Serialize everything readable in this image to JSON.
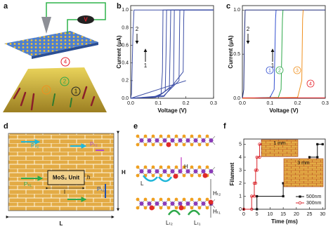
{
  "panel_labels": [
    "a",
    "b",
    "c",
    "d",
    "e",
    "f"
  ],
  "panel_a": {
    "markers": [
      "1",
      "2",
      "3",
      "4"
    ],
    "source": "V"
  },
  "panel_d": {
    "height": "H",
    "length": "L",
    "unit": "MoS₂ Unit",
    "unit_height": "h",
    "unit_length": "l",
    "paths": [
      "Pₛ₂",
      "Pₜ₂",
      "Pₛ₁",
      "Pₜ₁"
    ]
  },
  "panel_e": {
    "labels": [
      "H",
      "L",
      "Hₜ₂",
      "Hₜ₁",
      "Lₜ₂",
      "Lₜ₁"
    ]
  },
  "chart_data": [
    {
      "type": "line",
      "y_label": "Current (μA)",
      "x_label": "Voltage (V)",
      "xlim": [
        0,
        0.3
      ],
      "ylim": [
        0,
        1.05
      ],
      "xticks": [
        {
          "value": 0,
          "label": "0.0"
        },
        0.1,
        0.2,
        0.3
      ],
      "yticks": [
        {
          "value": 0,
          "label": "0.0"
        },
        0.2,
        0.4,
        0.6,
        0.8,
        {
          "value": 1,
          "label": "1.0"
        }
      ],
      "annotations": [
        "2",
        "1"
      ],
      "series": [
        {
          "color": "#3d4fa6",
          "x": [
            0,
            0.08,
            0.11,
            0.115,
            0.117,
            0.3
          ],
          "values": [
            0,
            0.01,
            0.05,
            0.3,
            1.0,
            1.0
          ]
        },
        {
          "color": "#3d4fa6",
          "x": [
            0,
            0.09,
            0.125,
            0.128,
            0.13,
            0.3
          ],
          "values": [
            0,
            0.01,
            0.08,
            0.5,
            1.0,
            1.0
          ]
        },
        {
          "color": "#3d4fa6",
          "x": [
            0,
            0.1,
            0.14,
            0.143,
            0.145,
            0.3
          ],
          "values": [
            0,
            0.02,
            0.12,
            0.6,
            1.0,
            1.0
          ]
        },
        {
          "color": "#3d4fa6",
          "x": [
            0,
            0.1,
            0.155,
            0.157,
            0.158,
            0.3
          ],
          "values": [
            0,
            0.02,
            0.15,
            0.7,
            1.0,
            1.0
          ]
        },
        {
          "color": "#3d4fa6",
          "x": [
            0,
            0.12,
            0.175,
            0.177,
            0.178,
            0.3
          ],
          "values": [
            0,
            0.03,
            0.2,
            0.8,
            1.0,
            1.0
          ]
        },
        {
          "color": "#3d4fa6",
          "x": [
            0,
            0.12,
            0.19,
            0.192,
            0.193,
            0.3
          ],
          "values": [
            0,
            0.02,
            0.3,
            0.9,
            1.0,
            1.0
          ]
        },
        {
          "color": "#3d4fa6",
          "x": [
            0,
            0.05,
            0.1,
            0.15,
            0.2
          ],
          "values": [
            0,
            0.05,
            0.1,
            0.15,
            0.2
          ]
        },
        {
          "color": "#3d4fa6",
          "x": [
            0.3,
            0.012,
            0.008,
            0.005,
            0.003,
            0
          ],
          "values": [
            1.0,
            1.0,
            0.7,
            0.3,
            0.05,
            0
          ]
        }
      ]
    },
    {
      "type": "line",
      "y_label": "Current (μA)",
      "x_label": "Voltage (V)",
      "xlim": [
        0,
        0.3
      ],
      "ylim": [
        0,
        1.05
      ],
      "xticks": [
        {
          "value": 0,
          "label": "0.0"
        },
        0.1,
        0.2,
        0.3
      ],
      "yticks": [
        {
          "value": 0,
          "label": "0.0"
        },
        0.5,
        {
          "value": 1,
          "label": "1.0"
        }
      ],
      "annotations": [
        "2",
        "1",
        "1",
        "2",
        "3",
        "4"
      ],
      "series": [
        {
          "color": "#1e2b78",
          "x": [
            0.3,
            0.01,
            0.007,
            0.005,
            0
          ],
          "values": [
            1.0,
            1.0,
            0.6,
            0.1,
            0
          ]
        },
        {
          "color": "#3350d0",
          "x": [
            0,
            0.1,
            0.115,
            0.12,
            0.122
          ],
          "values": [
            0,
            0.01,
            0.1,
            0.9,
            1.0
          ]
        },
        {
          "color": "#2ea84a",
          "x": [
            0,
            0.13,
            0.14,
            0.145,
            0.147
          ],
          "values": [
            0,
            0.01,
            0.1,
            0.9,
            1.0
          ]
        },
        {
          "color": "#f0901e",
          "x": [
            0,
            0.2,
            0.215,
            0.218,
            0.22
          ],
          "values": [
            0,
            0.01,
            0.2,
            0.9,
            1.0
          ]
        },
        {
          "color": "#e5202a",
          "x": [
            0,
            0.3
          ],
          "values": [
            0.005,
            0.005
          ]
        }
      ]
    },
    {
      "type": "line",
      "y_label": "Filament",
      "x_label": "Time (ms)",
      "xlim": [
        0,
        31
      ],
      "ylim": [
        0,
        5.4
      ],
      "xticks": [
        0,
        5,
        10,
        15,
        20,
        25,
        30
      ],
      "yticks": [
        0,
        1,
        2,
        3,
        4,
        5
      ],
      "legend": "lower right",
      "insets": [
        "1 mm",
        "3 mm"
      ],
      "series": [
        {
          "name": "500nm",
          "color": "#111111",
          "marker": "square",
          "x": [
            0,
            5,
            5,
            15,
            15,
            17,
            17,
            25,
            25,
            28,
            28,
            30
          ],
          "values": [
            0,
            0,
            1,
            1,
            2,
            2,
            3,
            3,
            4,
            4,
            5,
            5
          ]
        },
        {
          "name": "300nm",
          "color": "#d9232a",
          "marker": "circle",
          "x": [
            0,
            3,
            3,
            4,
            4,
            4.5,
            4.5,
            5,
            5,
            6,
            6,
            7
          ],
          "values": [
            0,
            0,
            1,
            1,
            2,
            2,
            3,
            3,
            4,
            4,
            5,
            5
          ]
        }
      ]
    }
  ]
}
